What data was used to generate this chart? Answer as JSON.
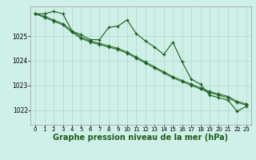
{
  "background_color": "#cff0e8",
  "grid_color": "#b8ddd0",
  "line_color": "#1a5c1a",
  "marker_color": "#1a5c1a",
  "xlabel": "Graphe pression niveau de la mer (hPa)",
  "xlabel_fontsize": 7,
  "xtick_fontsize": 5,
  "ytick_fontsize": 5.5,
  "xticks": [
    0,
    1,
    2,
    3,
    4,
    5,
    6,
    7,
    8,
    9,
    10,
    11,
    12,
    13,
    14,
    15,
    16,
    17,
    18,
    19,
    20,
    21,
    22,
    23
  ],
  "yticks": [
    1022,
    1023,
    1024,
    1025
  ],
  "ylim": [
    1021.4,
    1026.2
  ],
  "xlim": [
    -0.5,
    23.5
  ],
  "series1": [
    1025.9,
    1025.9,
    1026.0,
    1025.9,
    1025.2,
    1025.05,
    1024.85,
    1024.85,
    1025.35,
    1025.4,
    1025.65,
    1025.1,
    1024.8,
    1024.55,
    1024.25,
    1024.75,
    1023.95,
    1023.25,
    1023.05,
    1022.6,
    1022.5,
    1022.4,
    1021.95,
    1022.15
  ],
  "series2": [
    1025.9,
    1025.8,
    1025.65,
    1025.5,
    1025.2,
    1024.95,
    1024.8,
    1024.7,
    1024.6,
    1024.5,
    1024.35,
    1024.15,
    1023.95,
    1023.75,
    1023.55,
    1023.35,
    1023.2,
    1023.05,
    1022.9,
    1022.75,
    1022.65,
    1022.55,
    1022.35,
    1022.25
  ],
  "series3": [
    1025.9,
    1025.75,
    1025.6,
    1025.45,
    1025.15,
    1024.9,
    1024.75,
    1024.65,
    1024.55,
    1024.45,
    1024.3,
    1024.1,
    1023.9,
    1023.7,
    1023.5,
    1023.3,
    1023.15,
    1023.0,
    1022.85,
    1022.7,
    1022.6,
    1022.5,
    1022.3,
    1022.2
  ]
}
